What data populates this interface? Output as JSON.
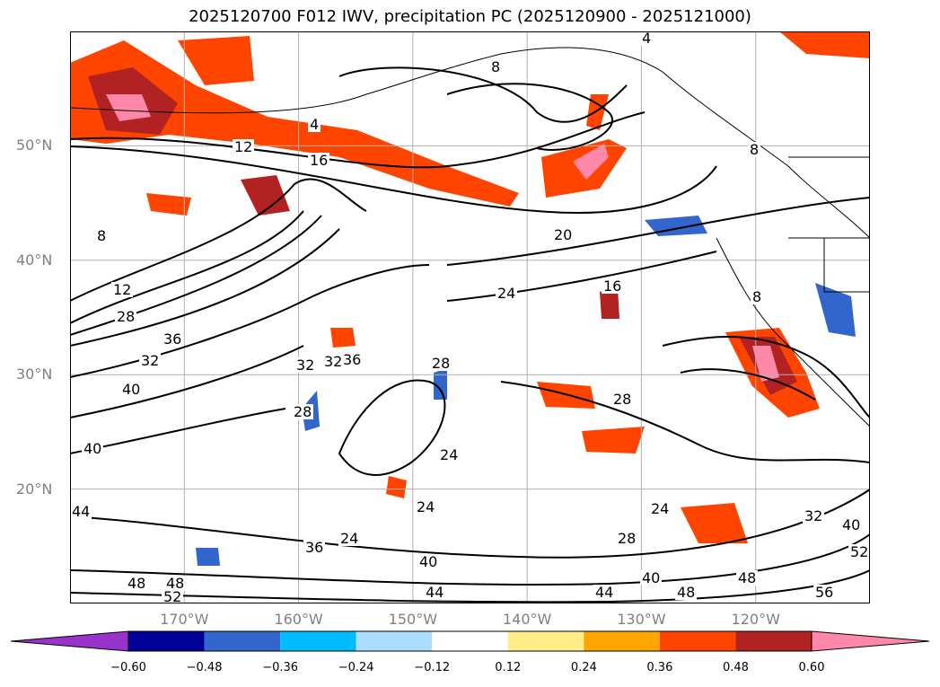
{
  "title": "2025120700 F012 IWV, precipitation PC (2025120900 - 2025121000)",
  "lat_labels": [
    {
      "label": "50°N",
      "lat": 50
    },
    {
      "label": "40°N",
      "lat": 40
    },
    {
      "label": "30°N",
      "lat": 30
    },
    {
      "label": "20°N",
      "lat": 20
    }
  ],
  "lon_labels": [
    {
      "label": "170°W",
      "lon": -170
    },
    {
      "label": "160°W",
      "lon": -160
    },
    {
      "label": "150°W",
      "lon": -150
    },
    {
      "label": "140°W",
      "lon": -140
    },
    {
      "label": "130°W",
      "lon": -130
    },
    {
      "label": "120°W",
      "lon": -120
    }
  ],
  "colorbar": {
    "ticks": [
      "−0.60",
      "−0.48",
      "−0.36",
      "−0.24",
      "−0.12",
      "0.12",
      "0.24",
      "0.36",
      "0.48",
      "0.60"
    ],
    "colors": [
      "#9933cc",
      "#000099",
      "#3366cc",
      "#00bbff",
      "#aaddff",
      "#ffffff",
      "#ffee88",
      "#ffa500",
      "#ff4400",
      "#b22222",
      "#ff88aa"
    ]
  },
  "contour_labels": [
    "4",
    "4",
    "8",
    "8",
    "8",
    "8",
    "12",
    "12",
    "16",
    "16",
    "20",
    "24",
    "24",
    "24",
    "24",
    "24",
    "28",
    "28",
    "28",
    "28",
    "28",
    "32",
    "32",
    "32",
    "32",
    "36",
    "36",
    "36",
    "40",
    "40",
    "40",
    "40",
    "40",
    "44",
    "44",
    "44",
    "48",
    "48",
    "48",
    "48",
    "52",
    "52",
    "56"
  ],
  "chart_data": {
    "type": "map",
    "variable": "IWV, precipitation PC",
    "lon_range": [
      -180,
      -110
    ],
    "lat_range": [
      10,
      60
    ],
    "gridlines": true,
    "colorbar_levels": [
      -0.6,
      -0.48,
      -0.36,
      -0.24,
      -0.12,
      0.12,
      0.24,
      0.36,
      0.48,
      0.6
    ]
  }
}
